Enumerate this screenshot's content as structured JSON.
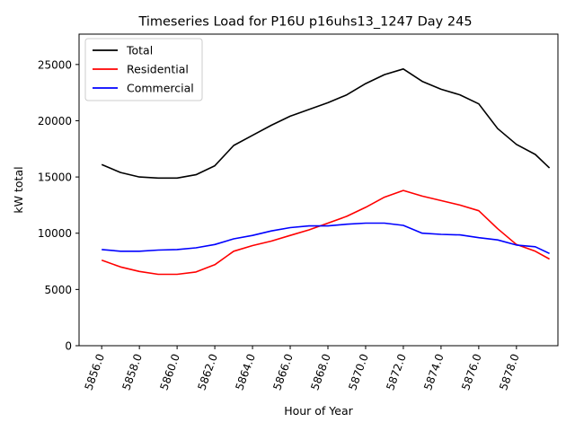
{
  "chart_data": {
    "type": "line",
    "title": "Timeseries Load for P16U p16uhs13_1247  Day 245",
    "xlabel": "Hour of Year",
    "ylabel": "kW total",
    "xlim": [
      5854.8,
      5880.2
    ],
    "ylim": [
      0,
      27700
    ],
    "x_ticks": [
      5856,
      5858,
      5860,
      5862,
      5864,
      5866,
      5868,
      5870,
      5872,
      5874,
      5876,
      5878
    ],
    "x_tick_labels": [
      "5856.0",
      "5858.0",
      "5860.0",
      "5862.0",
      "5864.0",
      "5866.0",
      "5868.0",
      "5870.0",
      "5872.0",
      "5874.0",
      "5876.0",
      "5878.0"
    ],
    "y_ticks": [
      0,
      5000,
      10000,
      15000,
      20000,
      25000
    ],
    "y_tick_labels": [
      "0",
      "5000",
      "10000",
      "15000",
      "20000",
      "25000"
    ],
    "grid": false,
    "legend_position": "top-left",
    "x": [
      5856,
      5857,
      5858,
      5859,
      5860,
      5861,
      5862,
      5863,
      5864,
      5865,
      5866,
      5867,
      5868,
      5869,
      5870,
      5871,
      5872,
      5873,
      5874,
      5875,
      5876,
      5877,
      5878,
      5879,
      5879.75
    ],
    "series": [
      {
        "name": "Total",
        "color": "#000000",
        "values": [
          16100,
          15400,
          15000,
          14900,
          14900,
          15200,
          16000,
          17800,
          18700,
          19600,
          20400,
          21000,
          21600,
          22300,
          23300,
          24100,
          24600,
          23500,
          22800,
          22300,
          21500,
          19300,
          17900,
          17000,
          15800
        ]
      },
      {
        "name": "Residential",
        "color": "#ff0000",
        "values": [
          7600,
          7000,
          6600,
          6350,
          6350,
          6550,
          7200,
          8400,
          8900,
          9300,
          9800,
          10300,
          10900,
          11500,
          12300,
          13200,
          13800,
          13300,
          12900,
          12500,
          12000,
          10400,
          9000,
          8400,
          7700
        ]
      },
      {
        "name": "Commercial",
        "color": "#0000ff",
        "values": [
          8550,
          8400,
          8400,
          8500,
          8550,
          8700,
          9000,
          9500,
          9800,
          10200,
          10500,
          10650,
          10650,
          10800,
          10900,
          10900,
          10700,
          10000,
          9900,
          9850,
          9600,
          9400,
          8950,
          8800,
          8200
        ]
      }
    ]
  }
}
